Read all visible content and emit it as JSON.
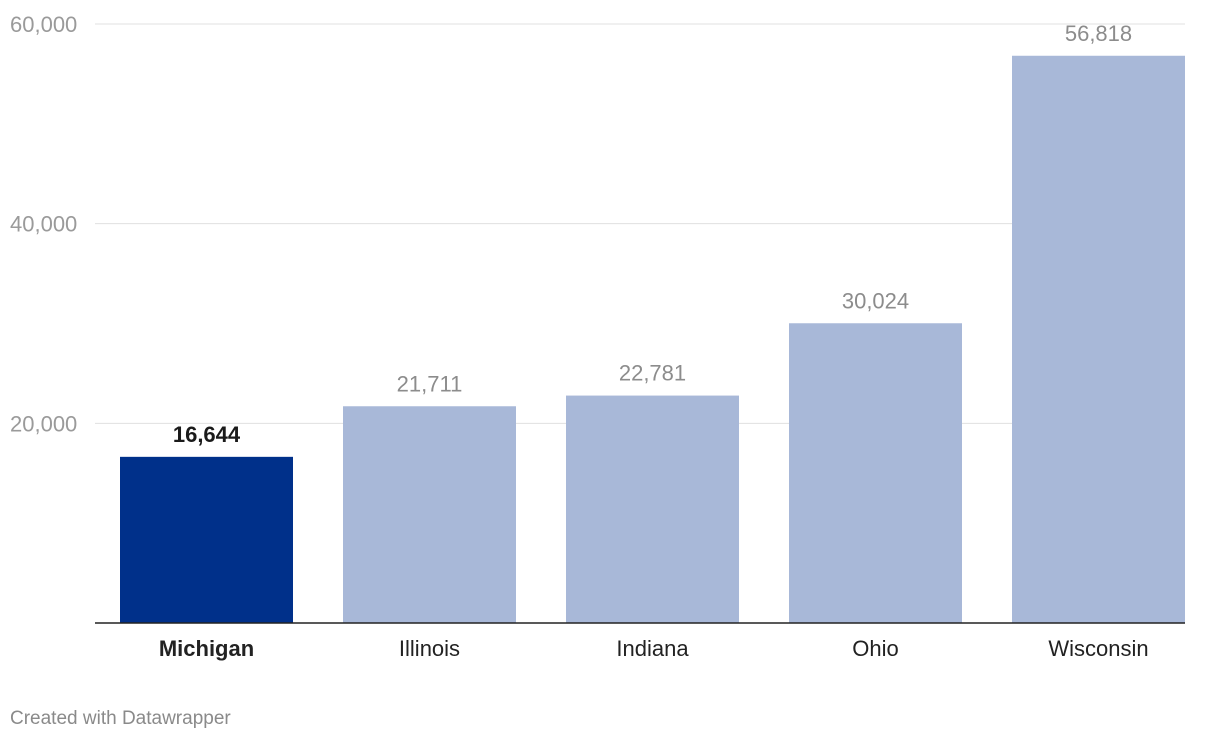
{
  "chart_data": {
    "type": "bar",
    "title": "",
    "xlabel": "",
    "ylabel": "",
    "categories": [
      "Michigan",
      "Illinois",
      "Indiana",
      "Ohio",
      "Wisconsin"
    ],
    "values": [
      16644,
      21711,
      22781,
      30024,
      56818
    ],
    "value_labels": [
      "16,644",
      "21,711",
      "22,781",
      "30,024",
      "56,818"
    ],
    "highlight": "Michigan",
    "ylim": [
      0,
      60000
    ],
    "yticks": [
      20000,
      40000,
      60000
    ],
    "ytick_labels": [
      "20,000",
      "40,000",
      "60,000"
    ],
    "grid": true,
    "colors": {
      "highlight": "#00308a",
      "default": "#a8b8d8",
      "grid": "#e0e0e0",
      "tick": "#9a9a9a",
      "value_label": "#8c8c8c"
    }
  },
  "footer": {
    "credit": "Created with Datawrapper"
  }
}
